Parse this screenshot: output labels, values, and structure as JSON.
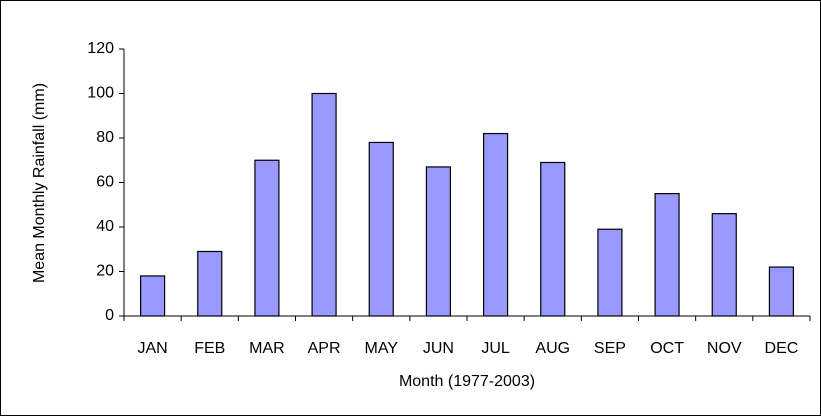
{
  "chart_data": {
    "type": "bar",
    "xlabel": "Month (1977-2003)",
    "ylabel": "Mean Monthly Rainfall (mm)",
    "categories": [
      "JAN",
      "FEB",
      "MAR",
      "APR",
      "MAY",
      "JUN",
      "JUL",
      "AUG",
      "SEP",
      "OCT",
      "NOV",
      "DEC"
    ],
    "values": [
      18,
      29,
      70,
      100,
      78,
      67,
      82,
      69,
      39,
      55,
      46,
      22
    ],
    "color": "#9999ff",
    "ylim": [
      0,
      120
    ],
    "yticks": [
      0,
      20,
      40,
      60,
      80,
      100,
      120
    ],
    "grid": false
  }
}
